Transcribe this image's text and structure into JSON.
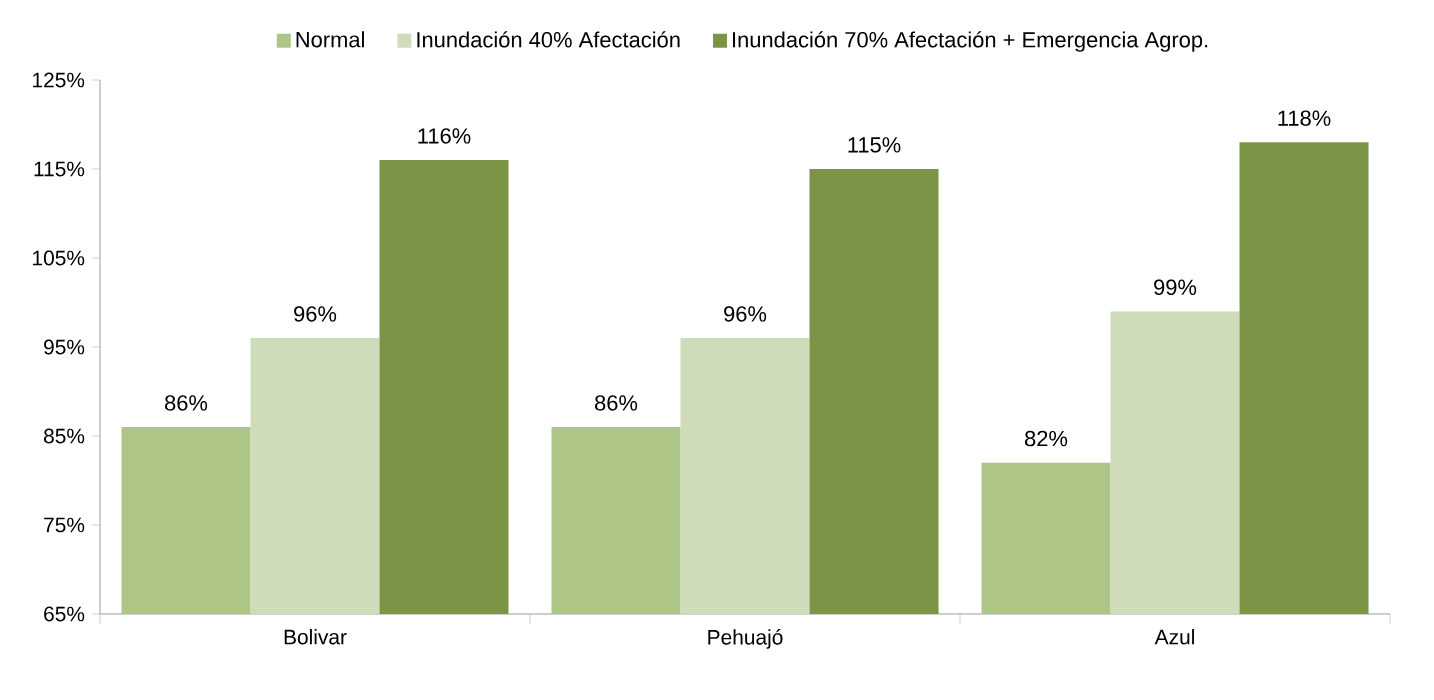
{
  "chart_data": {
    "type": "bar",
    "categories": [
      "Bolivar",
      "Pehuajó",
      "Azul"
    ],
    "series": [
      {
        "name": "Normal",
        "color": "#adc687",
        "values": [
          86,
          86,
          82
        ],
        "value_labels": [
          "86%",
          "86%",
          "82%"
        ]
      },
      {
        "name": "Inundación 40% Afectación",
        "color": "#cfdcba",
        "values": [
          96,
          96,
          99
        ],
        "value_labels": [
          "96%",
          "96%",
          "99%"
        ]
      },
      {
        "name": "Inundación 70% Afectación + Emergencia Agrop.",
        "color": "#7b9446",
        "values": [
          116,
          115,
          118
        ],
        "value_labels": [
          "116%",
          "115%",
          "118%"
        ]
      }
    ],
    "ylim": [
      65,
      125
    ],
    "yticks": [
      {
        "value": 65,
        "label": "65%"
      },
      {
        "value": 75,
        "label": "75%"
      },
      {
        "value": 85,
        "label": "85%"
      },
      {
        "value": 95,
        "label": "95%"
      },
      {
        "value": 105,
        "label": "105%"
      },
      {
        "value": 115,
        "label": "115%"
      },
      {
        "value": 125,
        "label": "125%"
      }
    ],
    "legend": "top",
    "grid": false
  }
}
